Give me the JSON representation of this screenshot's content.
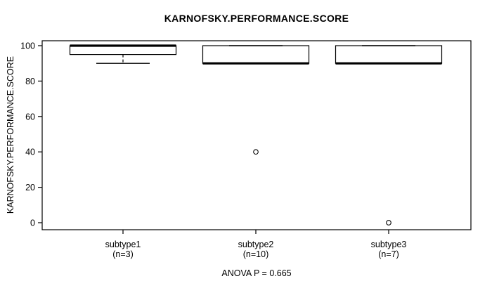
{
  "chart_data": {
    "type": "boxplot",
    "title": "KARNOFSKY.PERFORMANCE.SCORE",
    "ylabel": "KARNOFSKY.PERFORMANCE.SCORE",
    "xlabel": "",
    "annotation": "ANOVA P = 0.665",
    "ylim": [
      0,
      100
    ],
    "yticks": [
      0,
      20,
      40,
      60,
      80,
      100
    ],
    "grid": false,
    "legend": "none",
    "categories": [
      {
        "label": "subtype1",
        "n_label": "(n=3)",
        "n": 3
      },
      {
        "label": "subtype2",
        "n_label": "(n=10)",
        "n": 10
      },
      {
        "label": "subtype3",
        "n_label": "(n=7)",
        "n": 7
      }
    ],
    "series": [
      {
        "name": "subtype1",
        "whisker_low": 90,
        "q1": 95,
        "median": 100,
        "q3": 100,
        "whisker_high": 100,
        "outliers": []
      },
      {
        "name": "subtype2",
        "whisker_low": 90,
        "q1": 90,
        "median": 90,
        "q3": 100,
        "whisker_high": 100,
        "outliers": [
          40
        ]
      },
      {
        "name": "subtype3",
        "whisker_low": 90,
        "q1": 90,
        "median": 90,
        "q3": 100,
        "whisker_high": 100,
        "outliers": [
          0
        ]
      }
    ],
    "colors": {
      "line": "#000000",
      "box_fill": "#ffffff",
      "background": "#ffffff"
    }
  }
}
